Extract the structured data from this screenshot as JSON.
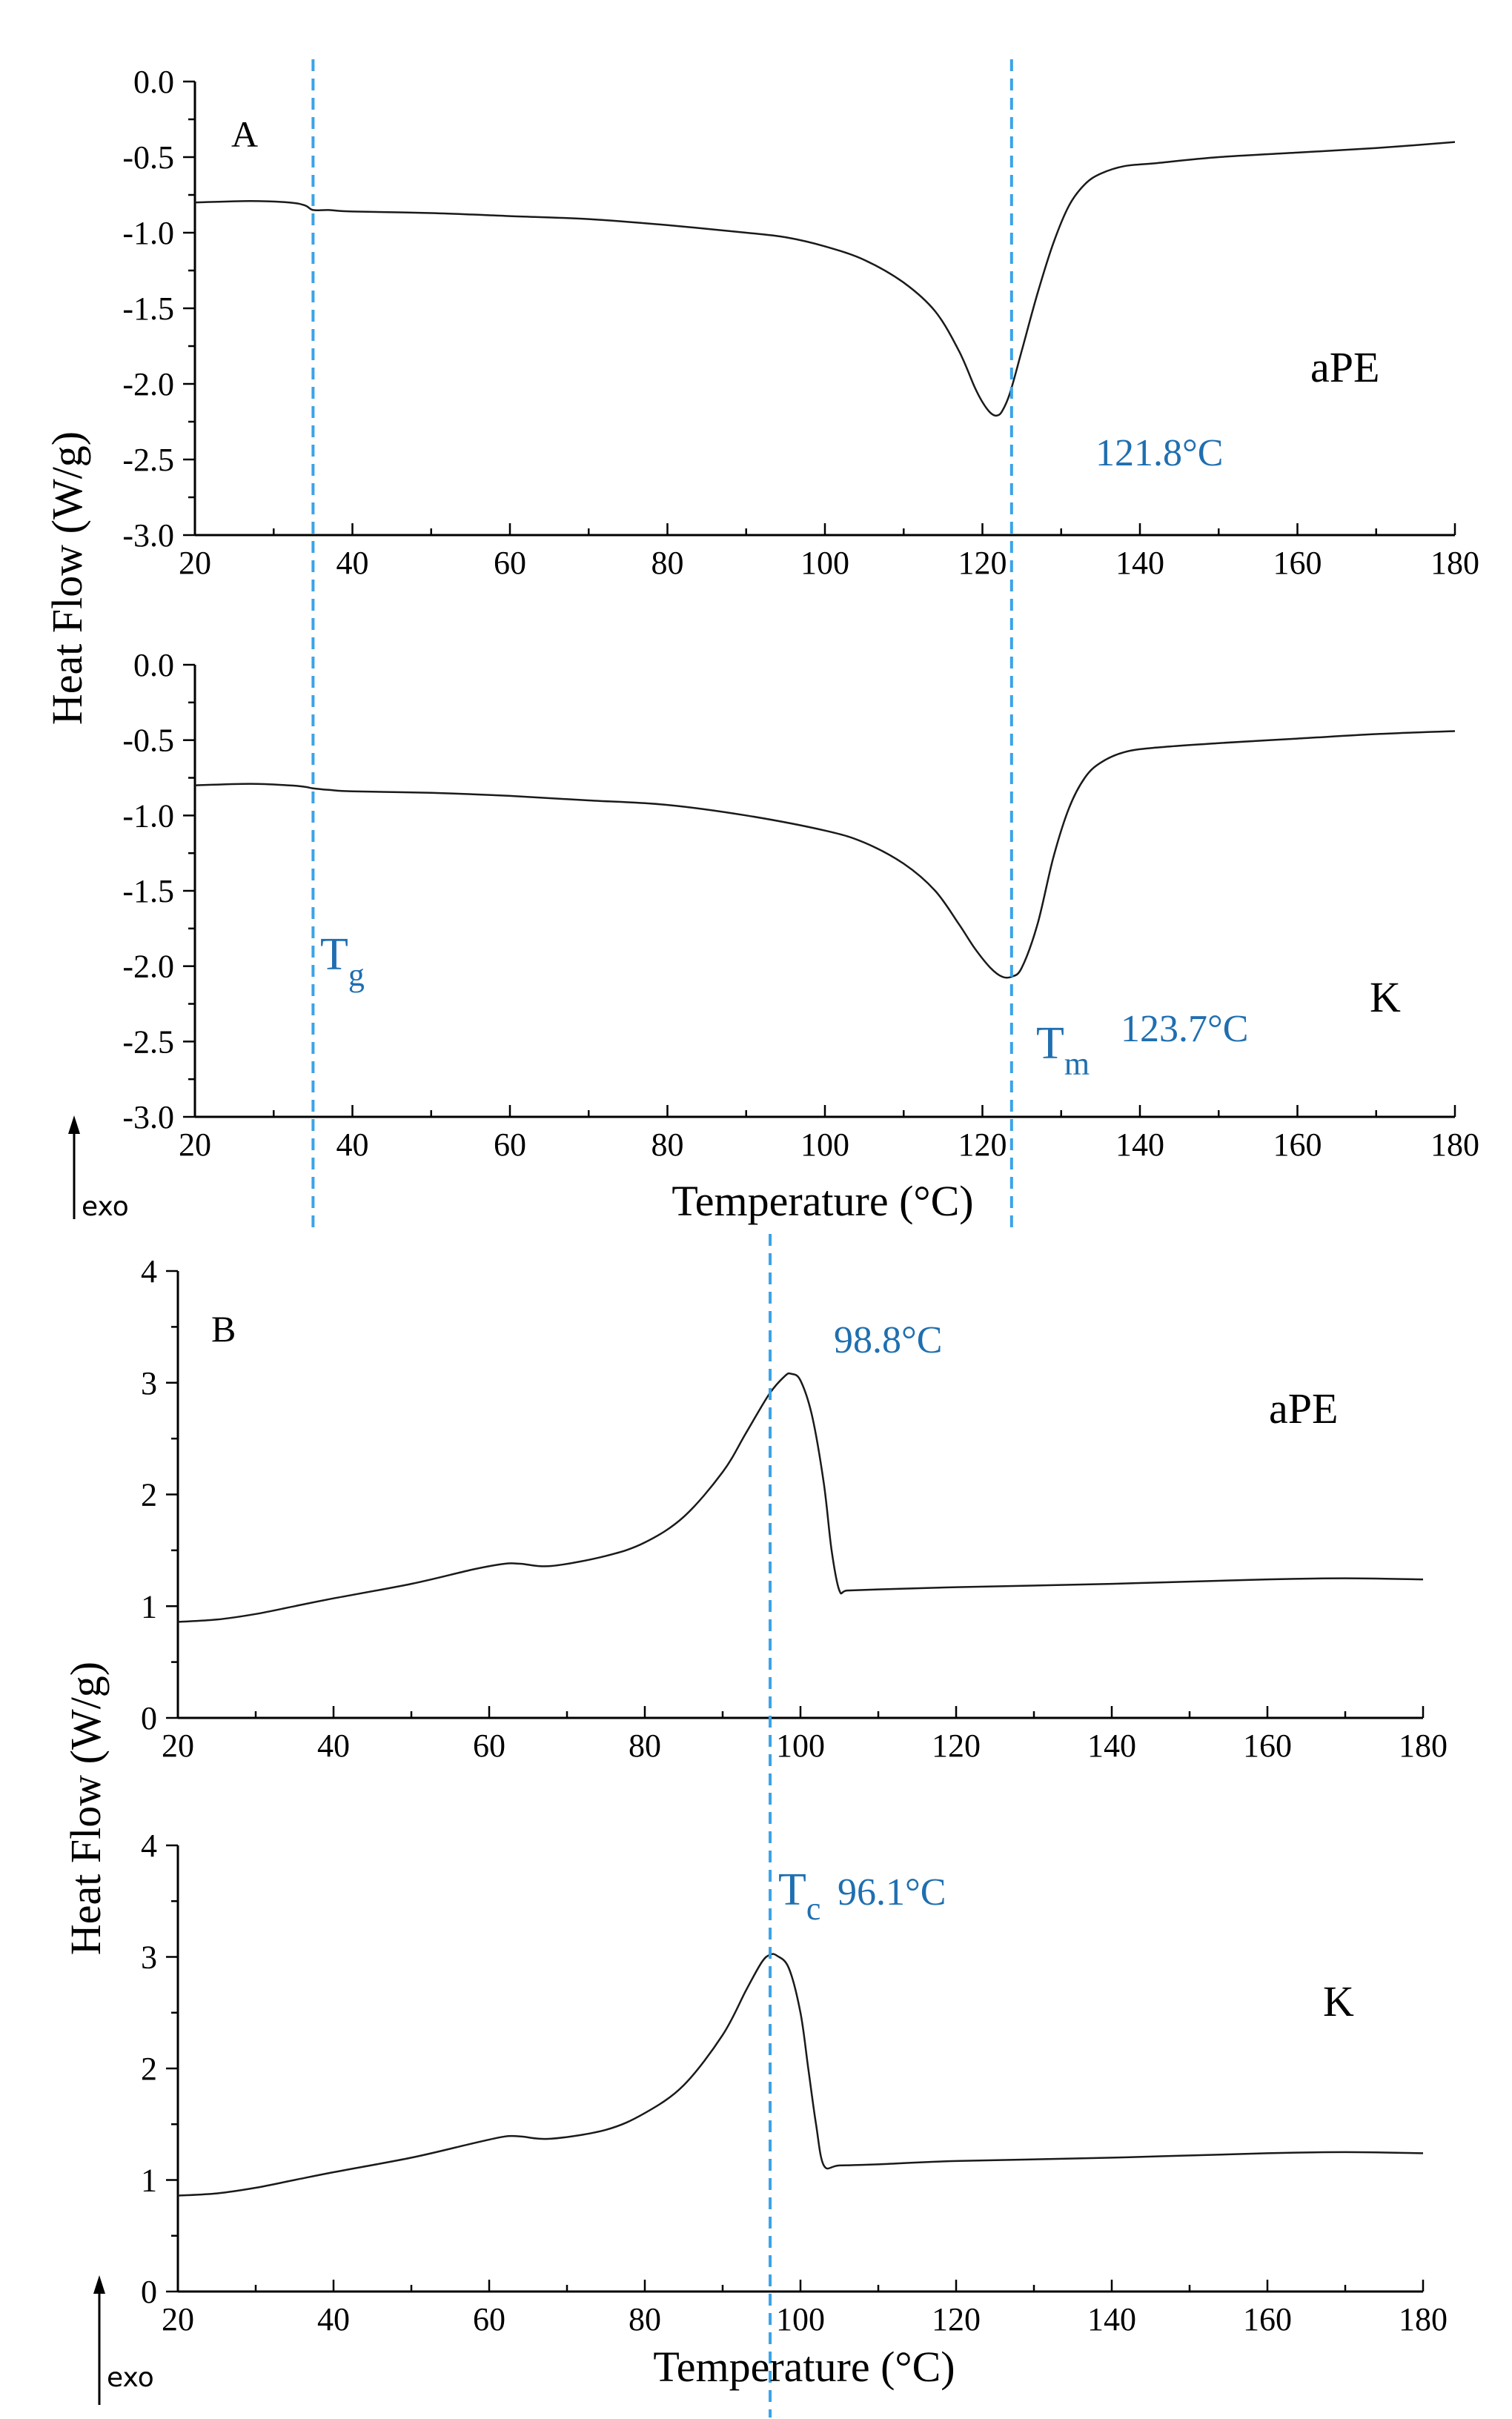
{
  "figure": {
    "y_axis_title": "Heat Flow (W/g)",
    "x_axis_title": "Temperature (°C)",
    "exo_label": "exo",
    "annotation_color": "#1f6fb0",
    "reference_line_color": "#3aa3e8"
  },
  "panels": {
    "A": {
      "letter": "A",
      "Tg": {
        "symbol": "T",
        "sub": "g",
        "temperature": 35
      },
      "Tm": {
        "symbol": "T",
        "sub": "m"
      },
      "melt_line_temperature": 123.7,
      "top": {
        "series_label": "aPE",
        "peak_label": "121.8°C"
      },
      "bottom": {
        "series_label": "K",
        "peak_label": "123.7°C"
      }
    },
    "B": {
      "letter": "B",
      "Tc": {
        "symbol": "T",
        "sub": "c"
      },
      "cryst_line_temperature": 96.1,
      "top": {
        "series_label": "aPE",
        "peak_label": "98.8°C"
      },
      "bottom": {
        "series_label": "K",
        "peak_label": "96.1°C"
      }
    }
  },
  "chart_data": [
    {
      "id": "A-aPE",
      "type": "line",
      "title": "",
      "xlabel": "Temperature (°C)",
      "ylabel": "Heat Flow (W/g)",
      "xlim": [
        20,
        180
      ],
      "ylim": [
        -3.0,
        0.0
      ],
      "xticks": [
        "20",
        "40",
        "60",
        "80",
        "100",
        "120",
        "140",
        "160",
        "180"
      ],
      "yticks": [
        "0.0",
        "-0.5",
        "-1.0",
        "-1.5",
        "-2.0",
        "-2.5",
        "-3.0"
      ],
      "series": [
        {
          "name": "aPE",
          "x": [
            20,
            27,
            32,
            34,
            35,
            37,
            40,
            50,
            60,
            70,
            80,
            90,
            95,
            100,
            105,
            110,
            114,
            117,
            119,
            120,
            121,
            121.8,
            122.5,
            123.5,
            125,
            127,
            129,
            131,
            133,
            135,
            138,
            142,
            150,
            160,
            170,
            180
          ],
          "y": [
            -0.8,
            -0.79,
            -0.8,
            -0.82,
            -0.85,
            -0.85,
            -0.86,
            -0.87,
            -0.89,
            -0.91,
            -0.95,
            -1.0,
            -1.03,
            -1.09,
            -1.18,
            -1.33,
            -1.52,
            -1.78,
            -2.02,
            -2.12,
            -2.19,
            -2.21,
            -2.18,
            -2.06,
            -1.78,
            -1.4,
            -1.07,
            -0.82,
            -0.68,
            -0.61,
            -0.56,
            -0.54,
            -0.5,
            -0.47,
            -0.44,
            -0.4
          ]
        }
      ],
      "vlines": [
        35,
        123.7
      ]
    },
    {
      "id": "A-K",
      "type": "line",
      "title": "",
      "xlabel": "Temperature (°C)",
      "ylabel": "Heat Flow (W/g)",
      "xlim": [
        20,
        180
      ],
      "ylim": [
        -3.0,
        0.0
      ],
      "xticks": [
        "20",
        "40",
        "60",
        "80",
        "100",
        "120",
        "140",
        "160",
        "180"
      ],
      "yticks": [
        "0.0",
        "-0.5",
        "-1.0",
        "-1.5",
        "-2.0",
        "-2.5",
        "-3.0"
      ],
      "series": [
        {
          "name": "K",
          "x": [
            20,
            27,
            32,
            34,
            35,
            37,
            40,
            50,
            60,
            70,
            80,
            90,
            100,
            105,
            110,
            114,
            117,
            119,
            121,
            122.5,
            123.7,
            125,
            127,
            129,
            131,
            133,
            135,
            138,
            142,
            150,
            160,
            170,
            180
          ],
          "y": [
            -0.8,
            -0.79,
            -0.8,
            -0.81,
            -0.82,
            -0.83,
            -0.84,
            -0.85,
            -0.87,
            -0.9,
            -0.93,
            -1.0,
            -1.1,
            -1.18,
            -1.32,
            -1.5,
            -1.72,
            -1.88,
            -2.01,
            -2.07,
            -2.07,
            -2.01,
            -1.72,
            -1.28,
            -0.95,
            -0.75,
            -0.65,
            -0.58,
            -0.55,
            -0.52,
            -0.49,
            -0.46,
            -0.44
          ]
        }
      ],
      "vlines": [
        35,
        123.7
      ]
    },
    {
      "id": "B-aPE",
      "type": "line",
      "title": "",
      "xlabel": "Temperature (°C)",
      "ylabel": "Heat Flow (W/g)",
      "xlim": [
        20,
        180
      ],
      "ylim": [
        0,
        4
      ],
      "xticks": [
        "20",
        "40",
        "60",
        "80",
        "100",
        "120",
        "140",
        "160",
        "180"
      ],
      "yticks": [
        "0",
        "1",
        "2",
        "3",
        "4"
      ],
      "series": [
        {
          "name": "aPE",
          "x": [
            20,
            25,
            30,
            35,
            40,
            50,
            58,
            62,
            64,
            68,
            75,
            80,
            85,
            90,
            93,
            96,
            98,
            98.8,
            100,
            101.5,
            103,
            104,
            105,
            106,
            110,
            120,
            140,
            160,
            170,
            180
          ],
          "y": [
            0.86,
            0.88,
            0.93,
            1.0,
            1.07,
            1.2,
            1.33,
            1.38,
            1.38,
            1.36,
            1.45,
            1.57,
            1.8,
            2.2,
            2.55,
            2.9,
            3.06,
            3.08,
            3.02,
            2.7,
            2.1,
            1.5,
            1.14,
            1.14,
            1.15,
            1.17,
            1.2,
            1.24,
            1.25,
            1.24
          ]
        }
      ],
      "vlines": [
        96.1
      ]
    },
    {
      "id": "B-K",
      "type": "line",
      "title": "",
      "xlabel": "Temperature (°C)",
      "ylabel": "Heat Flow (W/g)",
      "xlim": [
        20,
        180
      ],
      "ylim": [
        0,
        4
      ],
      "xticks": [
        "20",
        "40",
        "60",
        "80",
        "100",
        "120",
        "140",
        "160",
        "180"
      ],
      "yticks": [
        "0",
        "1",
        "2",
        "3",
        "4"
      ],
      "series": [
        {
          "name": "K",
          "x": [
            20,
            25,
            30,
            35,
            40,
            50,
            58,
            62,
            64,
            68,
            75,
            80,
            85,
            90,
            93,
            95,
            96.1,
            97,
            98.5,
            100,
            101,
            102,
            103,
            105,
            110,
            120,
            140,
            160,
            170,
            180
          ],
          "y": [
            0.86,
            0.88,
            0.93,
            1.0,
            1.07,
            1.2,
            1.33,
            1.39,
            1.39,
            1.37,
            1.45,
            1.6,
            1.85,
            2.3,
            2.7,
            2.95,
            3.02,
            3.01,
            2.9,
            2.5,
            2.0,
            1.5,
            1.13,
            1.13,
            1.14,
            1.17,
            1.2,
            1.24,
            1.25,
            1.24
          ]
        }
      ],
      "vlines": [
        96.1
      ]
    }
  ]
}
